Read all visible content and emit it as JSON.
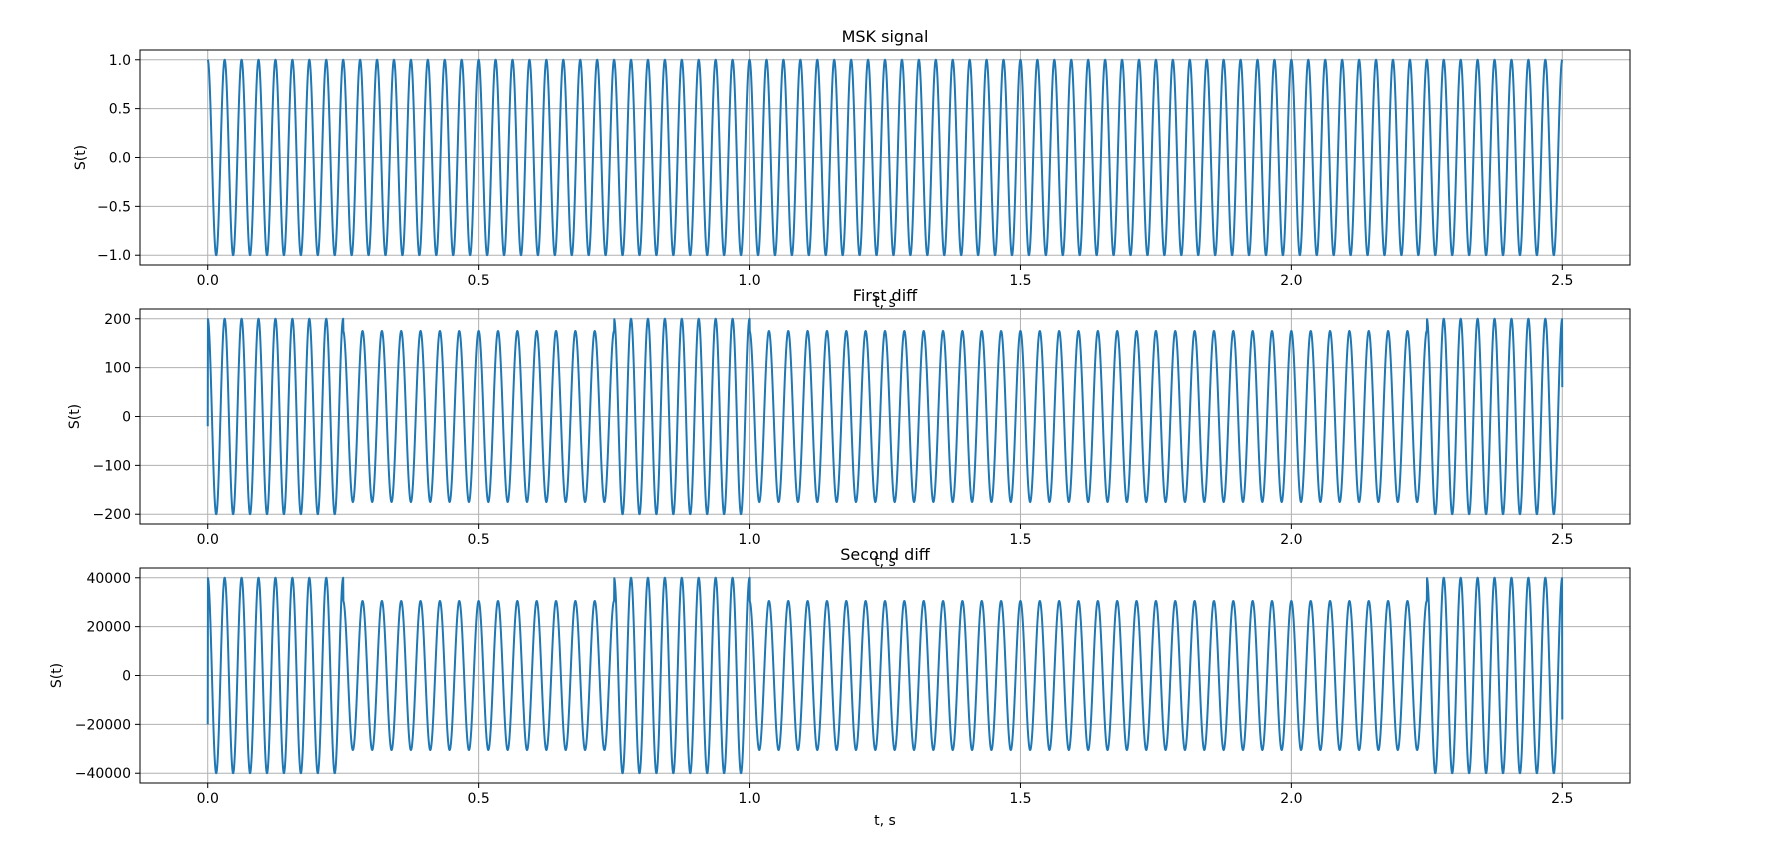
{
  "chart_data": [
    {
      "type": "line",
      "title": "MSK signal",
      "xlabel": "t, s",
      "ylabel": "S(t)",
      "xlim": [
        -0.125,
        2.625
      ],
      "ylim": [
        -1.1,
        1.1
      ],
      "x_ticks": [
        0.0,
        0.5,
        1.0,
        1.5,
        2.0,
        2.5
      ],
      "x_tick_labels": [
        "0.0",
        "0.5",
        "1.0",
        "1.5",
        "2.0",
        "2.5"
      ],
      "y_ticks": [
        -1.0,
        -0.5,
        0.0,
        0.5,
        1.0
      ],
      "y_tick_labels": [
        "−1.0",
        "−0.5",
        "0.0",
        "0.5",
        "1.0"
      ],
      "grid": true,
      "series_color": "#1f77b4",
      "signal": {
        "t_start": 0.0,
        "t_end": 2.5,
        "amplitude": 1.0,
        "segments": [
          {
            "t0": 0.0,
            "t1": 2.5,
            "freq_hz": 32
          }
        ],
        "start_value": 1.0,
        "end_value": 1.0
      }
    },
    {
      "type": "line",
      "title": "First diff",
      "xlabel": "t, s",
      "ylabel": "S(t)",
      "xlim": [
        -0.125,
        2.625
      ],
      "ylim": [
        -220,
        220
      ],
      "x_ticks": [
        0.0,
        0.5,
        1.0,
        1.5,
        2.0,
        2.5
      ],
      "x_tick_labels": [
        "0.0",
        "0.5",
        "1.0",
        "1.5",
        "2.0",
        "2.5"
      ],
      "y_ticks": [
        -200,
        -100,
        0,
        100,
        200
      ],
      "y_tick_labels": [
        "−200",
        "−100",
        "0",
        "100",
        "200"
      ],
      "grid": true,
      "series_color": "#1f77b4",
      "signal": {
        "t_start": 0.0,
        "t_end": 2.5,
        "segments": [
          {
            "t0": 0.0,
            "t1": 0.25,
            "amplitude": 200,
            "freq_hz": 32
          },
          {
            "t0": 0.25,
            "t1": 0.75,
            "amplitude": 175,
            "freq_hz": 28
          },
          {
            "t0": 0.75,
            "t1": 1.0,
            "amplitude": 200,
            "freq_hz": 32
          },
          {
            "t0": 1.0,
            "t1": 2.25,
            "amplitude": 175,
            "freq_hz": 28
          },
          {
            "t0": 2.25,
            "t1": 2.5,
            "amplitude": 200,
            "freq_hz": 32
          }
        ],
        "start_value": -20,
        "end_value": 60
      }
    },
    {
      "type": "line",
      "title": "Second diff",
      "xlabel": "t, s",
      "ylabel": "S(t)",
      "xlim": [
        -0.125,
        2.625
      ],
      "ylim": [
        -44000,
        44000
      ],
      "x_ticks": [
        0.0,
        0.5,
        1.0,
        1.5,
        2.0,
        2.5
      ],
      "x_tick_labels": [
        "0.0",
        "0.5",
        "1.0",
        "1.5",
        "2.0",
        "2.5"
      ],
      "y_ticks": [
        -40000,
        -20000,
        0,
        20000,
        40000
      ],
      "y_tick_labels": [
        "−40000",
        "−20000",
        "0",
        "20000",
        "40000"
      ],
      "grid": true,
      "series_color": "#1f77b4",
      "signal": {
        "t_start": 0.0,
        "t_end": 2.5,
        "segments": [
          {
            "t0": 0.0,
            "t1": 0.25,
            "amplitude": 40000,
            "freq_hz": 32
          },
          {
            "t0": 0.25,
            "t1": 0.75,
            "amplitude": 30500,
            "freq_hz": 28
          },
          {
            "t0": 0.75,
            "t1": 1.0,
            "amplitude": 40000,
            "freq_hz": 32
          },
          {
            "t0": 1.0,
            "t1": 2.25,
            "amplitude": 30500,
            "freq_hz": 28
          },
          {
            "t0": 2.25,
            "t1": 2.5,
            "amplitude": 40000,
            "freq_hz": 32
          }
        ],
        "start_value": -20000,
        "end_value": -18000
      }
    }
  ]
}
